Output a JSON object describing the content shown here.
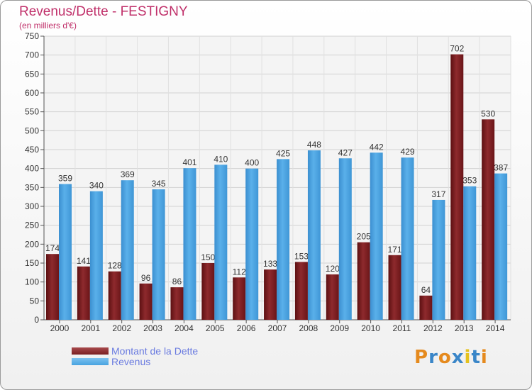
{
  "header": {
    "title": "Revenus/Dette - FESTIGNY",
    "subtitle": "(en milliers d'€)"
  },
  "legend": {
    "items": [
      {
        "label": "Montant de la Dette",
        "color": "#7a1f22"
      },
      {
        "label": "Revenus",
        "color": "#4aa3e0"
      }
    ]
  },
  "logo": {
    "text": "Proxiti",
    "letters": [
      "P",
      "r",
      "o",
      "x",
      "i",
      "t",
      "i"
    ],
    "colors": [
      "#e58a1e",
      "#3a86c8",
      "#e58a1e",
      "#3a86c8",
      "#e5c21e",
      "#3a86c8",
      "#e58a1e"
    ]
  },
  "chart_data": {
    "type": "bar",
    "title": "Revenus/Dette - FESTIGNY",
    "subtitle": "(en milliers d'€)",
    "categories": [
      "2000",
      "2001",
      "2002",
      "2003",
      "2004",
      "2005",
      "2006",
      "2007",
      "2008",
      "2009",
      "2010",
      "2011",
      "2012",
      "2013",
      "2014"
    ],
    "series": [
      {
        "name": "Montant de la Dette",
        "color": "#7a1f22",
        "values": [
          174,
          141,
          128,
          96,
          86,
          150,
          112,
          133,
          153,
          120,
          205,
          171,
          64,
          702,
          530
        ]
      },
      {
        "name": "Revenus",
        "color": "#4aa3e0",
        "values": [
          359,
          340,
          369,
          345,
          401,
          410,
          400,
          425,
          448,
          427,
          442,
          429,
          317,
          353,
          387
        ]
      }
    ],
    "ylim": [
      0,
      750
    ],
    "yticks": [
      0,
      50,
      100,
      150,
      200,
      250,
      300,
      350,
      400,
      450,
      500,
      550,
      600,
      650,
      700,
      750
    ],
    "grid": true,
    "legend_position": "bottom-left"
  }
}
